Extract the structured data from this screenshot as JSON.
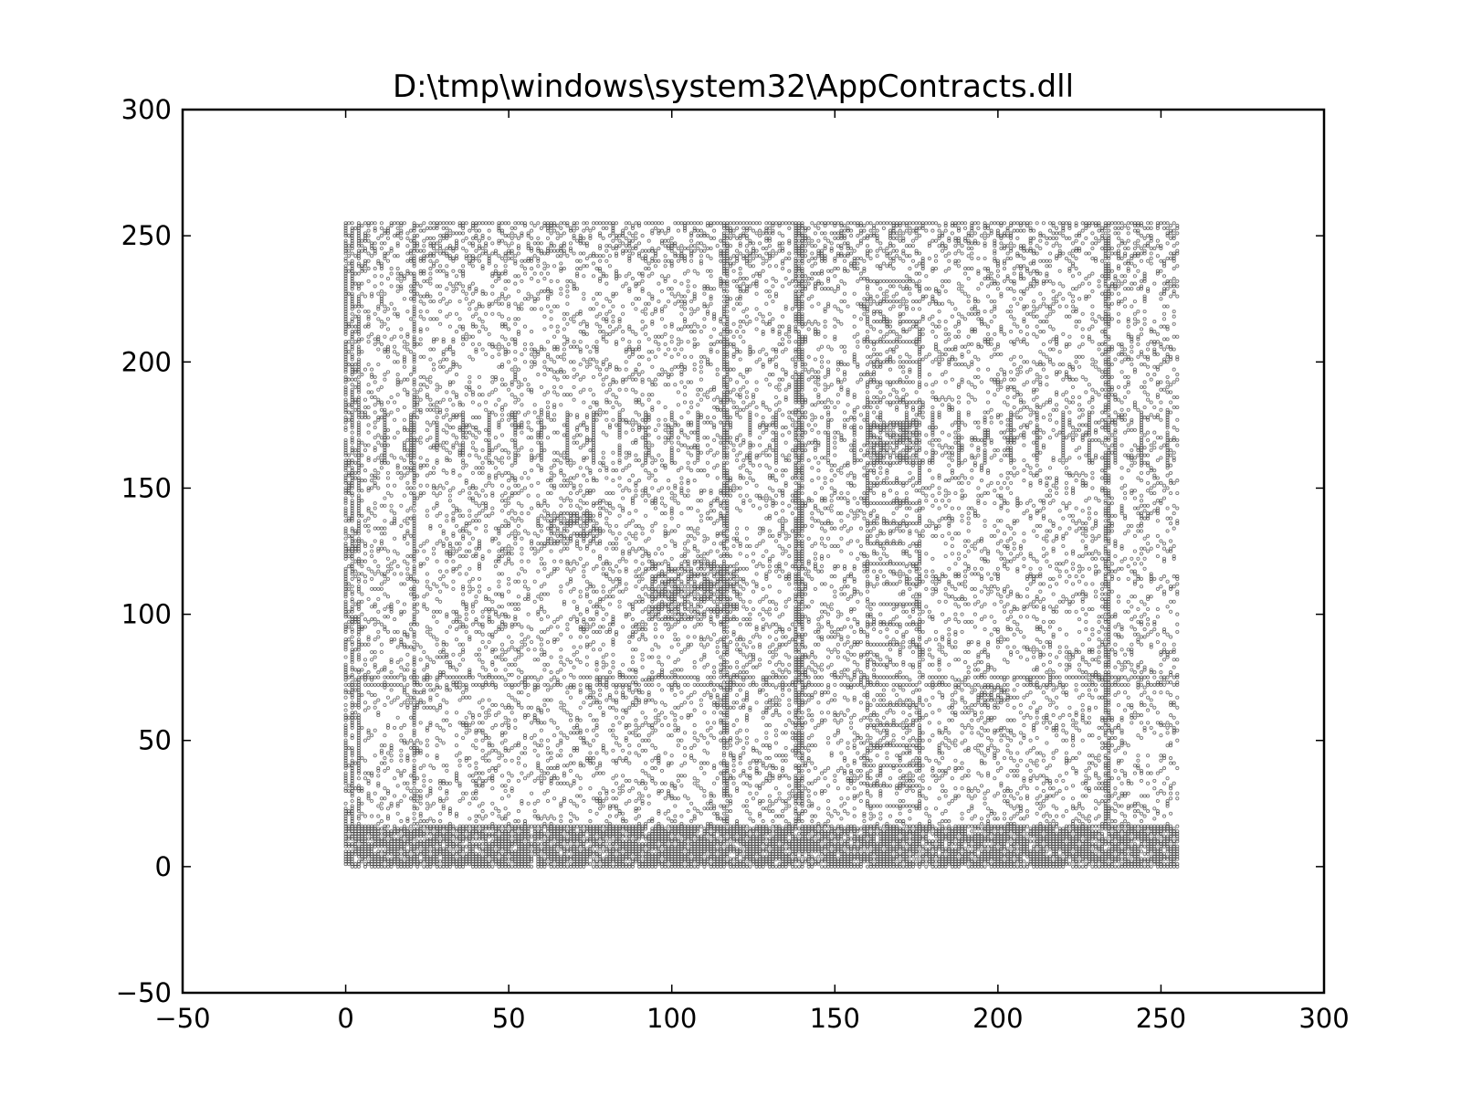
{
  "chart_data": {
    "type": "scatter",
    "title": "D:\\tmp\\windows\\system32\\AppContracts.dll",
    "xlabel": "",
    "ylabel": "",
    "xlim": [
      -50,
      300
    ],
    "ylim": [
      -50,
      300
    ],
    "xticks": [
      "−50",
      "0",
      "50",
      "100",
      "150",
      "200",
      "250",
      "300"
    ],
    "yticks": [
      "−50",
      "0",
      "50",
      "100",
      "150",
      "200",
      "250",
      "300"
    ],
    "grid": false,
    "legend": "none",
    "point_color": "#000000",
    "data_extent": {
      "x": [
        0,
        255
      ],
      "y": [
        0,
        255
      ]
    },
    "dense_columns_x": [
      0,
      2,
      4,
      21,
      116,
      117,
      138,
      139,
      140,
      233,
      234
    ],
    "dense_rows_y": [
      0,
      2,
      4,
      6,
      8,
      10,
      12,
      14,
      72,
      75,
      255
    ],
    "periodic_column_group": {
      "x_start": 4,
      "x_step": 8,
      "x_end": 252,
      "y_range": [
        160,
        180
      ]
    },
    "periodic_row_ladder": {
      "x_range": [
        160,
        176
      ],
      "y_start": 24,
      "y_step": 8,
      "y_end": 232
    },
    "dense_blocks": [
      {
        "x": [
          94,
          120
        ],
        "y": [
          98,
          120
        ]
      },
      {
        "x": [
          62,
          78
        ],
        "y": [
          128,
          140
        ]
      },
      {
        "x": [
          160,
          176
        ],
        "y": [
          160,
          176
        ]
      },
      {
        "x": [
          194,
          204
        ],
        "y": [
          64,
          72
        ]
      }
    ],
    "background_density": 0.17
  }
}
